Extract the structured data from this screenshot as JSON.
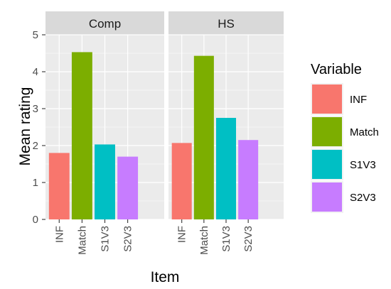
{
  "chart_data": {
    "type": "bar",
    "facets": [
      "Comp",
      "HS"
    ],
    "categories": [
      "INF",
      "Match",
      "S1V3",
      "S2V3"
    ],
    "series": [
      {
        "facet": "Comp",
        "values": [
          1.8,
          4.53,
          2.03,
          1.7
        ]
      },
      {
        "facet": "HS",
        "values": [
          2.07,
          4.43,
          2.75,
          2.15
        ]
      }
    ],
    "colors": {
      "INF": "#F8766D",
      "Match": "#7CAE00",
      "S1V3": "#00BFC4",
      "S2V3": "#C77CFF"
    },
    "title": "",
    "xlabel": "Item",
    "ylabel": "Mean rating",
    "ylim": [
      0,
      5
    ],
    "yticks": [
      0,
      1,
      2,
      3,
      4,
      5
    ],
    "grid": true,
    "panel_background": "#EBEBEB",
    "strip_background": "#D9D9D9",
    "legend": {
      "title": "Variable",
      "position": "right",
      "entries": [
        "INF",
        "Match",
        "S1V3",
        "S2V3"
      ]
    }
  }
}
